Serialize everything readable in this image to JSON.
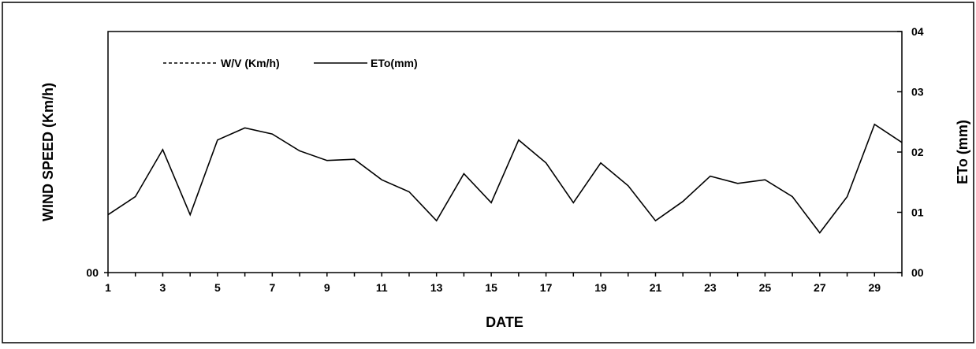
{
  "chart_data": {
    "type": "line",
    "xlabel": "DATE",
    "ylabel_left": "WIND SPEED (Km/h)",
    "ylabel_right": "ETo (mm)",
    "left_axis_ticks": [
      "00"
    ],
    "right_axis_ticks": [
      "00",
      "01",
      "02",
      "03",
      "04"
    ],
    "x_tick_labels": [
      "1",
      "3",
      "5",
      "7",
      "9",
      "11",
      "13",
      "15",
      "17",
      "19",
      "21",
      "23",
      "25",
      "27",
      "29"
    ],
    "xlim": [
      1,
      30
    ],
    "y_right_lim": [
      0,
      4
    ],
    "legend": {
      "placement": "top-left",
      "entries": [
        "W/V (Km/h)",
        "ETo(mm)"
      ]
    },
    "series": [
      {
        "name": "W/V (Km/h)",
        "axis": "left",
        "style": "dashed",
        "x": [],
        "values": []
      },
      {
        "name": "ETo(mm)",
        "axis": "right",
        "style": "solid",
        "x": [
          1,
          2,
          3,
          4,
          5,
          6,
          7,
          8,
          9,
          10,
          11,
          12,
          13,
          14,
          15,
          16,
          17,
          18,
          19,
          20,
          21,
          22,
          23,
          24,
          25,
          26,
          27,
          28,
          29,
          30
        ],
        "values": [
          0.96,
          1.26,
          2.04,
          0.96,
          2.2,
          2.4,
          2.3,
          2.02,
          1.86,
          1.88,
          1.54,
          1.34,
          0.86,
          1.64,
          1.16,
          2.2,
          1.82,
          1.16,
          1.82,
          1.44,
          0.86,
          1.18,
          1.6,
          1.48,
          1.54,
          1.26,
          0.66,
          1.26,
          2.46,
          2.16
        ]
      }
    ]
  }
}
